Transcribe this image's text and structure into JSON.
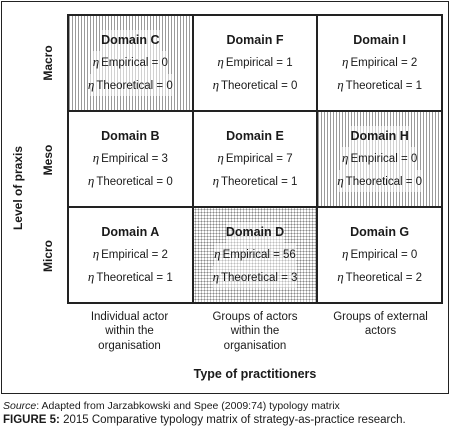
{
  "y_axis": {
    "title": "Level of praxis",
    "levels": [
      "Macro",
      "Meso",
      "Micro"
    ]
  },
  "x_axis": {
    "title": "Type of practitioners",
    "categories": [
      [
        "Individual actor",
        "within the",
        "organisation"
      ],
      [
        "Groups of actors",
        "within the",
        "organisation"
      ],
      [
        "Groups of external",
        "actors"
      ]
    ]
  },
  "symbol": "η",
  "stat_labels": {
    "empirical": "Empirical",
    "theoretical": "Theoretical"
  },
  "domains": [
    {
      "name": "Domain C",
      "empirical": 0,
      "theoretical": 0,
      "pattern": "stripes"
    },
    {
      "name": "Domain F",
      "empirical": 1,
      "theoretical": 0,
      "pattern": "none"
    },
    {
      "name": "Domain I",
      "empirical": 2,
      "theoretical": 1,
      "pattern": "none"
    },
    {
      "name": "Domain B",
      "empirical": 3,
      "theoretical": 0,
      "pattern": "none"
    },
    {
      "name": "Domain E",
      "empirical": 7,
      "theoretical": 1,
      "pattern": "none"
    },
    {
      "name": "Domain H",
      "empirical": 0,
      "theoretical": 0,
      "pattern": "stripes"
    },
    {
      "name": "Domain A",
      "empirical": 2,
      "theoretical": 1,
      "pattern": "none"
    },
    {
      "name": "Domain D",
      "empirical": 56,
      "theoretical": 3,
      "pattern": "dots"
    },
    {
      "name": "Domain G",
      "empirical": 0,
      "theoretical": 2,
      "pattern": "none"
    }
  ],
  "source": {
    "label": "Source",
    "text": ": Adapted from Jarzabkowski and Spee (2009:74) typology matrix"
  },
  "caption": {
    "label": "FIGURE 5:",
    "text": " 2015 Comparative typology matrix of strategy-as-practice research."
  }
}
